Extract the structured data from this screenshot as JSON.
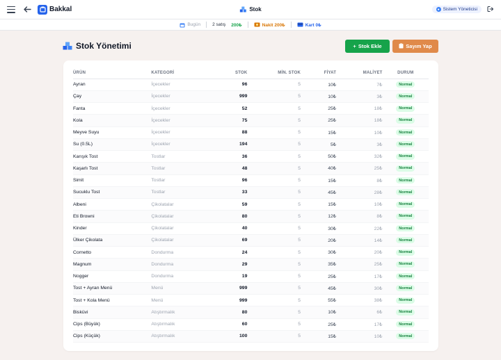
{
  "topbar": {
    "brand": "Bakkal",
    "center_title": "Stok",
    "user": "Sistem Yöneticisi"
  },
  "stats": {
    "today_label": "Bugün",
    "sales": "2 satış",
    "total": "200₺",
    "cash": "Nakit 200₺",
    "card": "Kart 0₺"
  },
  "page": {
    "title": "Stok Yönetimi",
    "add_button": "Stok Ekle",
    "count_button": "Sayım Yap"
  },
  "table": {
    "headers": [
      "ÜRÜN",
      "KATEGORİ",
      "STOK",
      "MİN. STOK",
      "FİYAT",
      "MALİYET",
      "DURUM"
    ],
    "rows": [
      [
        "Ayran",
        "İçecekler",
        "96",
        "5",
        "10₺",
        "7₺",
        "Normal"
      ],
      [
        "Çay",
        "İçecekler",
        "999",
        "5",
        "10₺",
        "3₺",
        "Normal"
      ],
      [
        "Fanta",
        "İçecekler",
        "52",
        "5",
        "25₺",
        "18₺",
        "Normal"
      ],
      [
        "Kola",
        "İçecekler",
        "75",
        "5",
        "25₺",
        "18₺",
        "Normal"
      ],
      [
        "Meyve Suyu",
        "İçecekler",
        "88",
        "5",
        "15₺",
        "10₺",
        "Normal"
      ],
      [
        "Su (0.5L)",
        "İçecekler",
        "194",
        "5",
        "5₺",
        "3₺",
        "Normal"
      ],
      [
        "Karışık Tost",
        "Tostlar",
        "36",
        "5",
        "50₺",
        "32₺",
        "Normal"
      ],
      [
        "Kaşarlı Tost",
        "Tostlar",
        "48",
        "5",
        "40₺",
        "25₺",
        "Normal"
      ],
      [
        "Simit",
        "Tostlar",
        "96",
        "5",
        "15₺",
        "8₺",
        "Normal"
      ],
      [
        "Sucuklu Tost",
        "Tostlar",
        "33",
        "5",
        "45₺",
        "28₺",
        "Normal"
      ],
      [
        "Albeni",
        "Çikolatalar",
        "59",
        "5",
        "15₺",
        "10₺",
        "Normal"
      ],
      [
        "Eti Browni",
        "Çikolatalar",
        "80",
        "5",
        "12₺",
        "8₺",
        "Normal"
      ],
      [
        "Kinder",
        "Çikolatalar",
        "40",
        "5",
        "30₺",
        "22₺",
        "Normal"
      ],
      [
        "Ülker Çikolata",
        "Çikolatalar",
        "69",
        "5",
        "20₺",
        "14₺",
        "Normal"
      ],
      [
        "Cornetto",
        "Dondurma",
        "24",
        "5",
        "30₺",
        "20₺",
        "Normal"
      ],
      [
        "Magnum",
        "Dondurma",
        "29",
        "5",
        "35₺",
        "25₺",
        "Normal"
      ],
      [
        "Nogger",
        "Dondurma",
        "19",
        "5",
        "25₺",
        "17₺",
        "Normal"
      ],
      [
        "Tost + Ayran Menü",
        "Menü",
        "999",
        "5",
        "45₺",
        "30₺",
        "Normal"
      ],
      [
        "Tost + Kola Menü",
        "Menü",
        "999",
        "5",
        "55₺",
        "38₺",
        "Normal"
      ],
      [
        "Bisküvi",
        "Atıştırmalık",
        "80",
        "5",
        "10₺",
        "6₺",
        "Normal"
      ],
      [
        "Cips (Büyük)",
        "Atıştırmalık",
        "60",
        "5",
        "25₺",
        "17₺",
        "Normal"
      ],
      [
        "Cips (Küçük)",
        "Atıştırmalık",
        "100",
        "5",
        "15₺",
        "10₺",
        "Normal"
      ]
    ]
  }
}
